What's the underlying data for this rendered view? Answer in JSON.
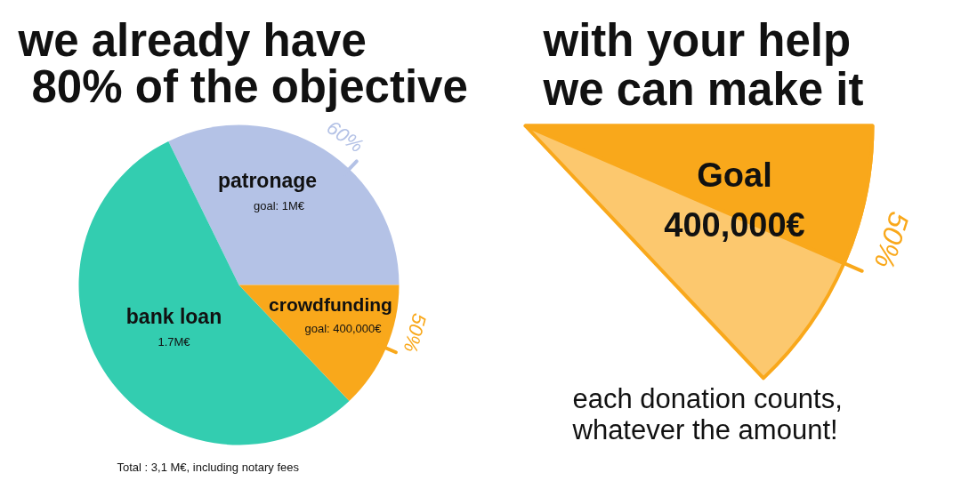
{
  "chart_data": [
    {
      "type": "pie",
      "title": "we already have\n80% of the objective",
      "categories": [
        "patronage",
        "bank loan",
        "crowdfunding"
      ],
      "values": [
        1000000,
        1700000,
        400000
      ],
      "colors": [
        "#b4c2e6",
        "#33cdb0",
        "#f9a81b"
      ],
      "value_labels": [
        "goal: 1M€",
        "1.7M€",
        "goal: 400,000€"
      ],
      "annotations": [
        {
          "text": "60%",
          "x": "patronage"
        },
        {
          "text": "50%",
          "x": "crowdfunding"
        },
        "Total : 3,1 M€, including notary fees"
      ]
    },
    {
      "type": "other",
      "title": "with your help\nwe can make it",
      "color": "#fcc86e",
      "values": [
        50
      ],
      "colors": [
        "#f9a81b"
      ],
      "value_labels": [
        "50%"
      ],
      "annotations": [
        "Goal\n400,000€",
        "each donation counts,\nwhatever the amount!"
      ]
    }
  ]
}
